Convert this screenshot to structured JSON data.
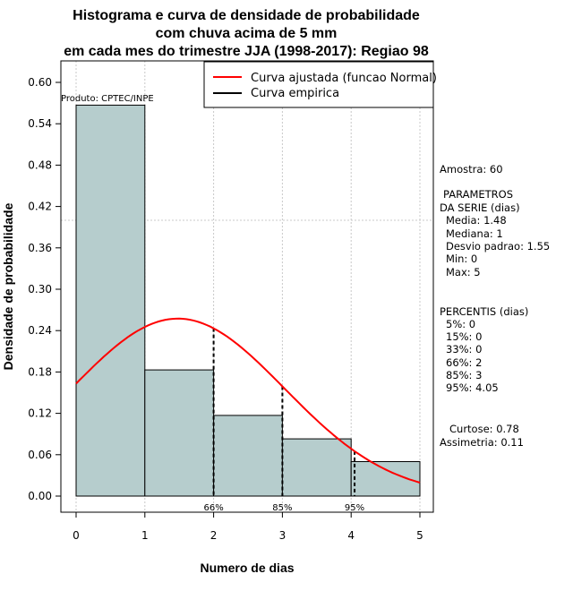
{
  "chart_data": {
    "type": "histogram",
    "title_lines": [
      "Histograma e curva de densidade de probabilidade",
      "com chuva acima de 5 mm",
      "em cada mes do trimestre JJA (1998-2017): Regiao 98"
    ],
    "xlabel": "Numero de dias",
    "ylabel": "Densidade de probabilidade",
    "xlim": [
      0,
      5
    ],
    "ylim": [
      0,
      0.6
    ],
    "x_ticks": [
      0,
      1,
      2,
      3,
      4,
      5
    ],
    "y_ticks": [
      0.0,
      0.06,
      0.12,
      0.18,
      0.24,
      0.3,
      0.36,
      0.42,
      0.48,
      0.54,
      0.6
    ],
    "y_tick_labels": [
      "0.00",
      "0.06",
      "0.12",
      "0.18",
      "0.24",
      "0.30",
      "0.36",
      "0.42",
      "0.48",
      "0.54",
      "0.60"
    ],
    "bins": [
      {
        "x0": 0,
        "x1": 1,
        "density": 0.567
      },
      {
        "x0": 1,
        "x1": 2,
        "density": 0.183
      },
      {
        "x0": 2,
        "x1": 3,
        "density": 0.117
      },
      {
        "x0": 3,
        "x1": 4,
        "density": 0.083
      },
      {
        "x0": 4,
        "x1": 5,
        "density": 0.05
      }
    ],
    "bar_color": "#b6cdcd",
    "normal_curve": {
      "name": "Curva ajustada (funcao Normal)",
      "color": "#ff0000",
      "mean": 1.48,
      "sd": 1.55,
      "x_range": [
        0,
        5
      ]
    },
    "empirical_curve": {
      "name": "Curva empirica",
      "color": "#000000"
    },
    "percentile_markers": [
      {
        "x": 2,
        "label": "66%"
      },
      {
        "x": 3,
        "label": "85%"
      },
      {
        "x": 4.05,
        "label": "95%"
      }
    ],
    "reference_line_y": 0.4,
    "legend_position": "top-right",
    "product_label": "Produto: CPTEC/INPE"
  },
  "side_panel": {
    "sample": "Amostra: 60",
    "params_title_1": "PARAMETROS",
    "params_title_2": "DA SERIE (dias)",
    "media": "Media: 1.48",
    "mediana": "Mediana: 1",
    "desvio": "Desvio padrao: 1.55",
    "min": "Min: 0",
    "max": "Max: 5",
    "percentis_title": "PERCENTIS (dias)",
    "p5": "5%: 0",
    "p15": "15%: 0",
    "p33": "33%: 0",
    "p66": "66%: 2",
    "p85": "85%: 3",
    "p95": "95%: 4.05",
    "curtose": "Curtose: 0.78",
    "assimetria": "Assimetria: 0.11"
  }
}
